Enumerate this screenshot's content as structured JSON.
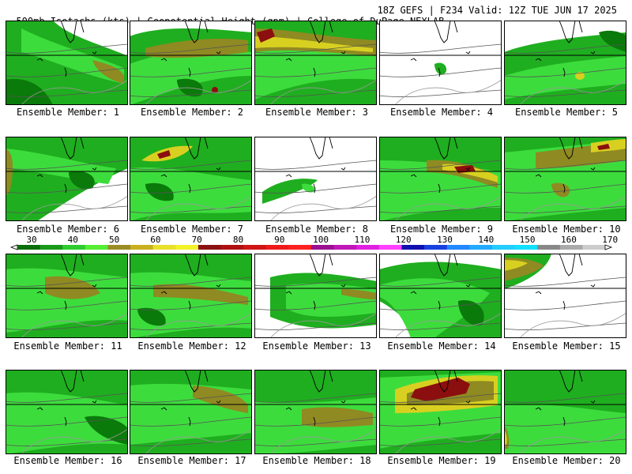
{
  "header": {
    "left_title": "500mb Isotachs (kts) | Geopotential Height (gpm) | College of DuPage NEXLAB",
    "right_title": "18Z GEFS | F234 Valid: 12Z TUE JUN 17 2025"
  },
  "colorbar": {
    "labels": [
      "30",
      "40",
      "50",
      "60",
      "70",
      "80",
      "90",
      "100",
      "110",
      "120",
      "130",
      "140",
      "150",
      "160",
      "170"
    ],
    "colors": [
      "#0a6e0a",
      "#1a9a1a",
      "#2ecc2e",
      "#55ee33",
      "#9b8d25",
      "#c9b01f",
      "#e8e02a",
      "#f3f32a",
      "#8b1010",
      "#b01010",
      "#d01515",
      "#ee1a1a",
      "#ff2020",
      "#9b1090",
      "#c018b8",
      "#e020e0",
      "#ff40ff",
      "#1010b0",
      "#1840e0",
      "#2288ff",
      "#22aaff",
      "#22ccff",
      "#11e0ff",
      "#888888",
      "#aaaaaa",
      "#cccccc"
    ]
  },
  "members": [
    {
      "caption": "Ensemble Member: 1"
    },
    {
      "caption": "Ensemble Member: 2"
    },
    {
      "caption": "Ensemble Member: 3"
    },
    {
      "caption": "Ensemble Member: 4"
    },
    {
      "caption": "Ensemble Member: 5"
    },
    {
      "caption": "Ensemble Member: 6"
    },
    {
      "caption": "Ensemble Member: 7"
    },
    {
      "caption": "Ensemble Member: 8"
    },
    {
      "caption": "Ensemble Member: 9"
    },
    {
      "caption": "Ensemble Member: 10"
    },
    {
      "caption": "Ensemble Member: 11"
    },
    {
      "caption": "Ensemble Member: 12"
    },
    {
      "caption": "Ensemble Member: 13"
    },
    {
      "caption": "Ensemble Member: 14"
    },
    {
      "caption": "Ensemble Member: 15"
    },
    {
      "caption": "Ensemble Member: 16"
    },
    {
      "caption": "Ensemble Member: 17"
    },
    {
      "caption": "Ensemble Member: 18"
    },
    {
      "caption": "Ensemble Member: 19"
    },
    {
      "caption": "Ensemble Member: 20"
    }
  ]
}
